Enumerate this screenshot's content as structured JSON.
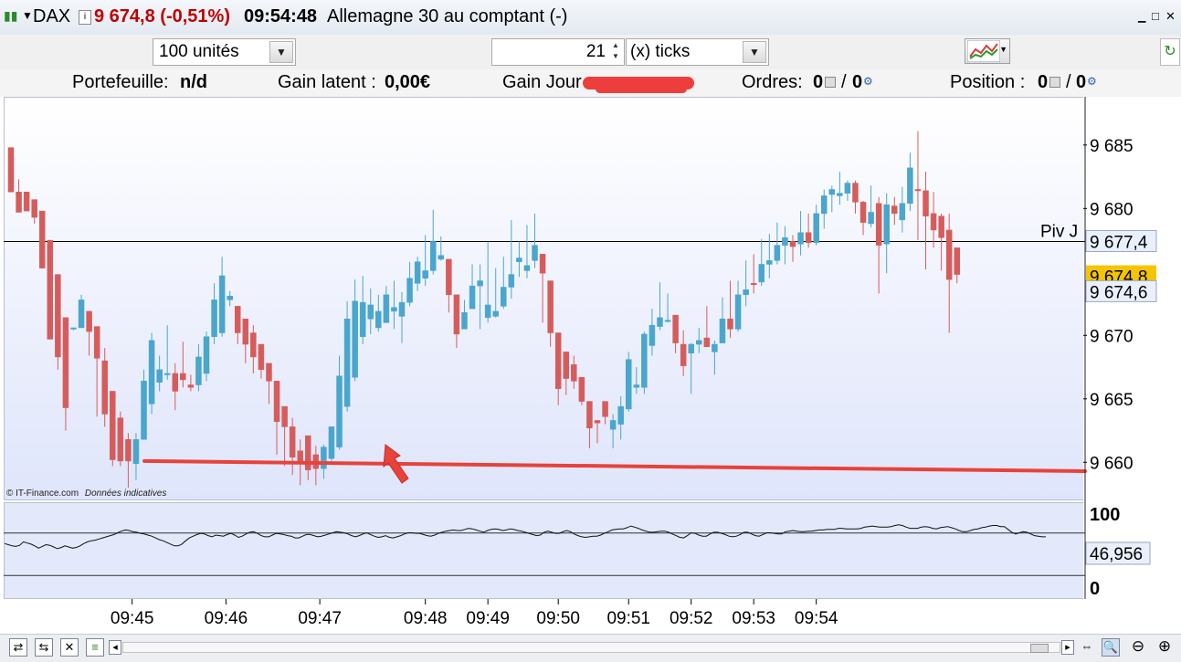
{
  "titlebar": {
    "symbol": "DAX",
    "price": "9 674,8 (-0,51%)",
    "time": "09:54:48",
    "name": "Allemagne 30 au comptant (-)"
  },
  "toolbar": {
    "quantity": "100 unités",
    "ticks_value": "21",
    "ticks_label": "(x) ticks"
  },
  "infobar": {
    "portefeuille_label": "Portefeuille:",
    "portefeuille_value": "n/d",
    "gain_latent_label": "Gain latent :",
    "gain_latent_value": "0,00€",
    "gain_jour_label": "Gain Jour :",
    "ordres_label": "Ordres:",
    "ordres_a": "0",
    "ordres_sep": "/",
    "ordres_b": "0",
    "position_label": "Position :",
    "position_a": "0",
    "position_sep": "/",
    "position_b": "0"
  },
  "chart_data": {
    "type": "candlestick",
    "y_ticks": [
      "9 685",
      "9 680",
      "9 670",
      "9 665",
      "9 660"
    ],
    "y_tick_values": [
      9685,
      9680,
      9670,
      9665,
      9660
    ],
    "ylim": [
      9657.0,
      9688.8
    ],
    "x_ticks": [
      "09:45",
      "09:46",
      "09:47",
      "09:48",
      "09:49",
      "09:50",
      "09:51",
      "09:52",
      "09:53",
      "09:54"
    ],
    "x_tick_bar_index": [
      15.5,
      27.5,
      39.5,
      53,
      61,
      70,
      79,
      87,
      95,
      103
    ],
    "candles": [
      {
        "o": 9684.8,
        "h": 9684.8,
        "l": 9681.3,
        "c": 9681.3
      },
      {
        "o": 9681.3,
        "h": 9682.3,
        "l": 9679.7,
        "c": 9679.7
      },
      {
        "o": 9681.3,
        "h": 9681.3,
        "l": 9679.8,
        "c": 9679.8
      },
      {
        "o": 9680.7,
        "h": 9680.7,
        "l": 9678.8,
        "c": 9679.3
      },
      {
        "o": 9679.8,
        "h": 9679.8,
        "l": 9675.3,
        "c": 9675.3
      },
      {
        "o": 9677.5,
        "h": 9677.5,
        "l": 9669.7,
        "c": 9669.7
      },
      {
        "o": 9674.8,
        "h": 9674.8,
        "l": 9667.3,
        "c": 9668.3
      },
      {
        "o": 9671.4,
        "h": 9671.4,
        "l": 9662.5,
        "c": 9664.3
      },
      {
        "o": 9670.6,
        "h": 9670.6,
        "l": 9670.4,
        "c": 9670.6
      },
      {
        "o": 9670.6,
        "h": 9673.2,
        "l": 9670.6,
        "c": 9672.8
      },
      {
        "o": 9671.9,
        "h": 9671.9,
        "l": 9668.4,
        "c": 9670.3
      },
      {
        "o": 9670.7,
        "h": 9670.7,
        "l": 9663.6,
        "c": 9668.2
      },
      {
        "o": 9668.0,
        "h": 9669.0,
        "l": 9662.8,
        "c": 9663.8
      },
      {
        "o": 9665.6,
        "h": 9665.6,
        "l": 9659.7,
        "c": 9660.2
      },
      {
        "o": 9663.5,
        "h": 9664.0,
        "l": 9659.7,
        "c": 9660.1
      },
      {
        "o": 9661.8,
        "h": 9662.3,
        "l": 9658.0,
        "c": 9660.1
      },
      {
        "o": 9659.9,
        "h": 9662.3,
        "l": 9658.6,
        "c": 9661.8
      },
      {
        "o": 9661.8,
        "h": 9667.3,
        "l": 9661.8,
        "c": 9666.4
      },
      {
        "o": 9664.6,
        "h": 9670.2,
        "l": 9663.8,
        "c": 9669.6
      },
      {
        "o": 9666.3,
        "h": 9668.4,
        "l": 9665.6,
        "c": 9667.3
      },
      {
        "o": 9667.0,
        "h": 9670.8,
        "l": 9666.5,
        "c": 9667.0
      },
      {
        "o": 9667.0,
        "h": 9667.8,
        "l": 9664.1,
        "c": 9665.6
      },
      {
        "o": 9667.0,
        "h": 9669.5,
        "l": 9665.9,
        "c": 9666.5
      },
      {
        "o": 9666.1,
        "h": 9666.9,
        "l": 9665.6,
        "c": 9665.9
      },
      {
        "o": 9666.1,
        "h": 9669.3,
        "l": 9665.6,
        "c": 9668.3
      },
      {
        "o": 9667.0,
        "h": 9670.3,
        "l": 9666.4,
        "c": 9669.9
      },
      {
        "o": 9669.9,
        "h": 9674.1,
        "l": 9669.3,
        "c": 9672.8
      },
      {
        "o": 9670.2,
        "h": 9676.2,
        "l": 9669.9,
        "c": 9674.7
      },
      {
        "o": 9672.8,
        "h": 9673.5,
        "l": 9672.3,
        "c": 9673.1
      },
      {
        "o": 9672.3,
        "h": 9672.3,
        "l": 9669.3,
        "c": 9670.2
      },
      {
        "o": 9671.3,
        "h": 9671.3,
        "l": 9667.8,
        "c": 9669.3
      },
      {
        "o": 9670.2,
        "h": 9670.8,
        "l": 9667.0,
        "c": 9668.3
      },
      {
        "o": 9669.3,
        "h": 9669.3,
        "l": 9666.6,
        "c": 9667.3
      },
      {
        "o": 9667.8,
        "h": 9667.8,
        "l": 9664.6,
        "c": 9666.4
      },
      {
        "o": 9666.4,
        "h": 9666.4,
        "l": 9660.6,
        "c": 9663.2
      },
      {
        "o": 9664.4,
        "h": 9664.4,
        "l": 9659.7,
        "c": 9662.8
      },
      {
        "o": 9662.8,
        "h": 9663.5,
        "l": 9659.0,
        "c": 9660.4
      },
      {
        "o": 9660.9,
        "h": 9661.8,
        "l": 9658.2,
        "c": 9659.9
      },
      {
        "o": 9662.1,
        "h": 9662.1,
        "l": 9658.6,
        "c": 9659.4
      },
      {
        "o": 9660.6,
        "h": 9661.3,
        "l": 9658.2,
        "c": 9659.5
      },
      {
        "o": 9659.5,
        "h": 9661.4,
        "l": 9658.7,
        "c": 9661.2
      },
      {
        "o": 9660.3,
        "h": 9662.8,
        "l": 9660.1,
        "c": 9662.8
      },
      {
        "o": 9661.2,
        "h": 9668.4,
        "l": 9661.0,
        "c": 9666.8
      },
      {
        "o": 9664.4,
        "h": 9672.7,
        "l": 9664.0,
        "c": 9671.3
      },
      {
        "o": 9666.7,
        "h": 9674.4,
        "l": 9666.4,
        "c": 9672.7
      },
      {
        "o": 9669.9,
        "h": 9674.7,
        "l": 9669.3,
        "c": 9672.6
      },
      {
        "o": 9671.3,
        "h": 9673.7,
        "l": 9670.1,
        "c": 9672.4
      },
      {
        "o": 9670.6,
        "h": 9673.2,
        "l": 9670.3,
        "c": 9671.9
      },
      {
        "o": 9671.0,
        "h": 9673.9,
        "l": 9671.0,
        "c": 9673.2
      },
      {
        "o": 9671.9,
        "h": 9674.3,
        "l": 9670.5,
        "c": 9672.2
      },
      {
        "o": 9671.5,
        "h": 9673.4,
        "l": 9669.4,
        "c": 9672.6
      },
      {
        "o": 9672.6,
        "h": 9675.8,
        "l": 9672.3,
        "c": 9674.5
      },
      {
        "o": 9674.1,
        "h": 9676.2,
        "l": 9673.5,
        "c": 9675.8
      },
      {
        "o": 9674.5,
        "h": 9677.9,
        "l": 9673.9,
        "c": 9675.1
      },
      {
        "o": 9675.1,
        "h": 9679.9,
        "l": 9674.8,
        "c": 9677.4
      },
      {
        "o": 9676.0,
        "h": 9677.8,
        "l": 9675.9,
        "c": 9676.3
      },
      {
        "o": 9676.0,
        "h": 9676.0,
        "l": 9671.8,
        "c": 9673.2
      },
      {
        "o": 9673.2,
        "h": 9673.2,
        "l": 9669.0,
        "c": 9670.1
      },
      {
        "o": 9670.5,
        "h": 9672.8,
        "l": 9670.5,
        "c": 9671.8
      },
      {
        "o": 9672.1,
        "h": 9675.6,
        "l": 9672.1,
        "c": 9673.9
      },
      {
        "o": 9673.9,
        "h": 9675.6,
        "l": 9670.5,
        "c": 9674.3
      },
      {
        "o": 9671.4,
        "h": 9677.4,
        "l": 9671.0,
        "c": 9672.4
      },
      {
        "o": 9671.5,
        "h": 9675.3,
        "l": 9671.4,
        "c": 9671.9
      },
      {
        "o": 9672.3,
        "h": 9676.2,
        "l": 9672.1,
        "c": 9673.8
      },
      {
        "o": 9673.8,
        "h": 9679.1,
        "l": 9672.9,
        "c": 9674.8
      },
      {
        "o": 9675.8,
        "h": 9677.4,
        "l": 9674.6,
        "c": 9676.1
      },
      {
        "o": 9675.1,
        "h": 9678.7,
        "l": 9674.5,
        "c": 9675.5
      },
      {
        "o": 9675.9,
        "h": 9679.6,
        "l": 9675.3,
        "c": 9677.1
      },
      {
        "o": 9676.4,
        "h": 9676.4,
        "l": 9671.0,
        "c": 9674.9
      },
      {
        "o": 9674.3,
        "h": 9674.3,
        "l": 9669.1,
        "c": 9670.2
      },
      {
        "o": 9670.2,
        "h": 9670.2,
        "l": 9664.5,
        "c": 9665.8
      },
      {
        "o": 9668.7,
        "h": 9668.7,
        "l": 9665.3,
        "c": 9666.6
      },
      {
        "o": 9667.7,
        "h": 9668.4,
        "l": 9665.8,
        "c": 9666.4
      },
      {
        "o": 9666.7,
        "h": 9666.7,
        "l": 9664.5,
        "c": 9664.8
      },
      {
        "o": 9664.8,
        "h": 9664.8,
        "l": 9661.1,
        "c": 9662.7
      },
      {
        "o": 9663.3,
        "h": 9663.3,
        "l": 9661.5,
        "c": 9663.1
      },
      {
        "o": 9664.8,
        "h": 9664.8,
        "l": 9663.0,
        "c": 9663.6
      },
      {
        "o": 9662.6,
        "h": 9663.8,
        "l": 9661.1,
        "c": 9663.3
      },
      {
        "o": 9663.0,
        "h": 9665.2,
        "l": 9661.8,
        "c": 9664.4
      },
      {
        "o": 9664.2,
        "h": 9668.7,
        "l": 9664.0,
        "c": 9668.1
      },
      {
        "o": 9665.9,
        "h": 9667.5,
        "l": 9665.4,
        "c": 9666.1
      },
      {
        "o": 9665.9,
        "h": 9670.3,
        "l": 9665.4,
        "c": 9670.1
      },
      {
        "o": 9669.2,
        "h": 9672.1,
        "l": 9668.4,
        "c": 9670.8
      },
      {
        "o": 9670.7,
        "h": 9674.2,
        "l": 9670.4,
        "c": 9671.4
      },
      {
        "o": 9671.2,
        "h": 9673.3,
        "l": 9671.0,
        "c": 9671.2
      },
      {
        "o": 9671.6,
        "h": 9671.6,
        "l": 9668.6,
        "c": 9669.4
      },
      {
        "o": 9669.3,
        "h": 9670.4,
        "l": 9666.8,
        "c": 9667.6
      },
      {
        "o": 9668.6,
        "h": 9669.4,
        "l": 9665.4,
        "c": 9669.3
      },
      {
        "o": 9669.3,
        "h": 9670.6,
        "l": 9668.6,
        "c": 9669.6
      },
      {
        "o": 9669.8,
        "h": 9672.3,
        "l": 9669.4,
        "c": 9669.1
      },
      {
        "o": 9668.7,
        "h": 9669.6,
        "l": 9666.9,
        "c": 9669.3
      },
      {
        "o": 9669.4,
        "h": 9673.0,
        "l": 9669.4,
        "c": 9671.3
      },
      {
        "o": 9671.3,
        "h": 9674.3,
        "l": 9669.8,
        "c": 9670.5
      },
      {
        "o": 9670.5,
        "h": 9674.3,
        "l": 9670.3,
        "c": 9673.2
      },
      {
        "o": 9673.2,
        "h": 9675.9,
        "l": 9672.3,
        "c": 9673.6
      },
      {
        "o": 9674.1,
        "h": 9676.4,
        "l": 9673.3,
        "c": 9674.0
      },
      {
        "o": 9674.2,
        "h": 9677.6,
        "l": 9673.9,
        "c": 9675.6
      },
      {
        "o": 9675.6,
        "h": 9678.0,
        "l": 9674.5,
        "c": 9675.9
      },
      {
        "o": 9675.9,
        "h": 9678.9,
        "l": 9675.6,
        "c": 9677.1
      },
      {
        "o": 9677.1,
        "h": 9678.6,
        "l": 9675.6,
        "c": 9677.7
      },
      {
        "o": 9677.4,
        "h": 9677.9,
        "l": 9675.8,
        "c": 9677.0
      },
      {
        "o": 9677.2,
        "h": 9679.8,
        "l": 9676.3,
        "c": 9678.1
      },
      {
        "o": 9678.1,
        "h": 9679.6,
        "l": 9676.9,
        "c": 9677.3
      },
      {
        "o": 9677.3,
        "h": 9680.3,
        "l": 9677.1,
        "c": 9679.6
      },
      {
        "o": 9679.6,
        "h": 9681.5,
        "l": 9678.4,
        "c": 9681.0
      },
      {
        "o": 9681.1,
        "h": 9681.8,
        "l": 9679.7,
        "c": 9681.5
      },
      {
        "o": 9681.0,
        "h": 9682.9,
        "l": 9680.3,
        "c": 9681.2
      },
      {
        "o": 9681.2,
        "h": 9682.2,
        "l": 9680.6,
        "c": 9682.0
      },
      {
        "o": 9682.0,
        "h": 9682.2,
        "l": 9679.6,
        "c": 9680.5
      },
      {
        "o": 9680.5,
        "h": 9680.6,
        "l": 9677.9,
        "c": 9678.9
      },
      {
        "o": 9678.8,
        "h": 9681.8,
        "l": 9678.5,
        "c": 9679.7
      },
      {
        "o": 9680.4,
        "h": 9680.9,
        "l": 9673.3,
        "c": 9677.1
      },
      {
        "o": 9677.2,
        "h": 9681.2,
        "l": 9674.9,
        "c": 9680.3
      },
      {
        "o": 9680.2,
        "h": 9680.9,
        "l": 9678.7,
        "c": 9679.6
      },
      {
        "o": 9679.1,
        "h": 9681.7,
        "l": 9678.1,
        "c": 9680.4
      },
      {
        "o": 9680.4,
        "h": 9684.4,
        "l": 9679.8,
        "c": 9683.2
      },
      {
        "o": 9681.5,
        "h": 9686.1,
        "l": 9677.5,
        "c": 9681.4
      },
      {
        "o": 9681.4,
        "h": 9682.9,
        "l": 9675.2,
        "c": 9679.4
      },
      {
        "o": 9679.6,
        "h": 9681.3,
        "l": 9676.9,
        "c": 9678.3
      },
      {
        "o": 9679.4,
        "h": 9679.6,
        "l": 9675.1,
        "c": 9677.7
      },
      {
        "o": 9678.3,
        "h": 9679.6,
        "l": 9670.2,
        "c": 9674.4
      },
      {
        "o": 9676.9,
        "h": 9676.9,
        "l": 9674.1,
        "c": 9674.8
      }
    ],
    "annotations": {
      "piv_label": "Piv J",
      "piv_value": "9 677,4",
      "last_price": "9 674,8",
      "bid_price": "9 674,6",
      "pivot_level": 9677.4,
      "last_level": 9674.8,
      "bid_level": 9674.6,
      "support_line_levels": [
        9660.1,
        9659.3
      ]
    },
    "watermark": {
      "source": "© IT-Finance.com",
      "note": "Données indicatives"
    },
    "indicator": {
      "type": "line",
      "top_label": "100",
      "bottom_label": "0",
      "current": "46,956",
      "range": [
        0,
        100
      ],
      "levels": [
        80,
        20
      ],
      "values": [
        35,
        33,
        31,
        30,
        32,
        38,
        36,
        34,
        31,
        27,
        30,
        33,
        32,
        29,
        26,
        28,
        31,
        29,
        27,
        28,
        31,
        35,
        38,
        40,
        41,
        43,
        45,
        47,
        49,
        51,
        54,
        57,
        59,
        58,
        56,
        55,
        53,
        52,
        50,
        48,
        45,
        42,
        40,
        37,
        34,
        31,
        31,
        34,
        40,
        45,
        48,
        51,
        53,
        52,
        49,
        47,
        50,
        49,
        48,
        51,
        53,
        50,
        46,
        48,
        52,
        55,
        56,
        53,
        49,
        47,
        47,
        50,
        53,
        52,
        51,
        49,
        48,
        45,
        45,
        48,
        51,
        51,
        49,
        47,
        48,
        50,
        52,
        54,
        56,
        55,
        54,
        52,
        49,
        47,
        49,
        52,
        54,
        51,
        48,
        46,
        47,
        49,
        46,
        45,
        47,
        49,
        52,
        54,
        54,
        53,
        53,
        51,
        49,
        48,
        50,
        53,
        55,
        57,
        58,
        59,
        58,
        58,
        60,
        62,
        61,
        59,
        57,
        55,
        58,
        60,
        61,
        60,
        58,
        59,
        61,
        60,
        58,
        57,
        55,
        53,
        51,
        49,
        50,
        55,
        57,
        55,
        53,
        53,
        56,
        58,
        56,
        52,
        49,
        47,
        46,
        47,
        48,
        48,
        50,
        53,
        56,
        59,
        60,
        61,
        61,
        63,
        66,
        64,
        62,
        59,
        57,
        55,
        55,
        56,
        57,
        57,
        55,
        52,
        49,
        46,
        45,
        49,
        54,
        53,
        50,
        48,
        48,
        52,
        55,
        55,
        53,
        51,
        48,
        47,
        48,
        51,
        55,
        55,
        52,
        49,
        48,
        51,
        54,
        54,
        53,
        52,
        52,
        56,
        57,
        58,
        57,
        56,
        56,
        57,
        57,
        58,
        59,
        59,
        60,
        60,
        60,
        62,
        62,
        61,
        61,
        61,
        61,
        62,
        64,
        65,
        66,
        65,
        64,
        64,
        64,
        65,
        67,
        68,
        67,
        64,
        62,
        62,
        62,
        64,
        65,
        64,
        62,
        61,
        63,
        64,
        65,
        63,
        61,
        58,
        56,
        56,
        58,
        60,
        61,
        63,
        64,
        66,
        67,
        67,
        65,
        65,
        60,
        55,
        52,
        54,
        56,
        55,
        52,
        49,
        48,
        47,
        47
      ]
    }
  },
  "status": {
    "scroll_left": "◂",
    "scroll_right": "▸"
  },
  "colors": {
    "up": "#4aa6cc",
    "down": "#d65c5c",
    "support_line": "#e8423a",
    "last_price_bg": "#f5c400",
    "price_red": "#c00000"
  }
}
